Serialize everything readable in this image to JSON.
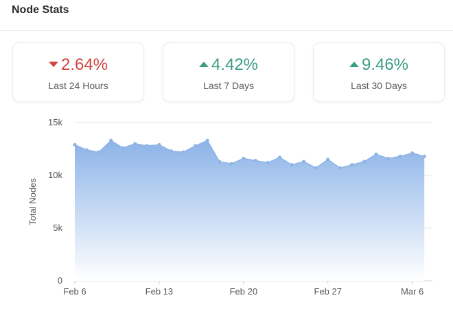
{
  "header": {
    "title": "Node Stats"
  },
  "stats": [
    {
      "value": "2.64%",
      "label": "Last 24 Hours",
      "direction": "down",
      "color": "#d0453f"
    },
    {
      "value": "4.42%",
      "label": "Last 7 Days",
      "direction": "up",
      "color": "#3c9c85"
    },
    {
      "value": "9.46%",
      "label": "Last 30 Days",
      "direction": "up",
      "color": "#3c9c85"
    }
  ],
  "chart_data": {
    "type": "area",
    "ylabel": "Total Nodes",
    "ylim": [
      0,
      15000
    ],
    "y_ticks": [
      0,
      5000,
      10000,
      15000
    ],
    "y_tick_labels": [
      "0",
      "5k",
      "10k",
      "15k"
    ],
    "x_tick_labels": [
      "Feb 6",
      "Feb 13",
      "Feb 20",
      "Feb 27",
      "Mar 6"
    ],
    "x_tick_days": [
      0,
      7,
      14,
      21,
      28
    ],
    "grid": true,
    "line_color": "#8fb4e6",
    "fill_top_color": "#8cb3e8",
    "fill_bottom_color": "#ffffff",
    "series": [
      {
        "x": [
          0,
          1,
          2,
          3,
          4,
          5,
          6,
          7,
          8,
          9,
          10,
          11,
          12,
          13,
          14,
          15,
          16,
          17,
          18,
          19,
          20,
          21,
          22,
          23,
          24,
          25,
          26,
          27,
          28,
          29
        ],
        "values": [
          12900,
          12400,
          12200,
          13300,
          12600,
          13000,
          12800,
          12900,
          12300,
          12200,
          12800,
          13300,
          11300,
          11100,
          11600,
          11400,
          11200,
          11700,
          11000,
          11300,
          10700,
          11500,
          10700,
          11000,
          11300,
          12000,
          11600,
          11800,
          12100,
          11800
        ]
      }
    ]
  }
}
